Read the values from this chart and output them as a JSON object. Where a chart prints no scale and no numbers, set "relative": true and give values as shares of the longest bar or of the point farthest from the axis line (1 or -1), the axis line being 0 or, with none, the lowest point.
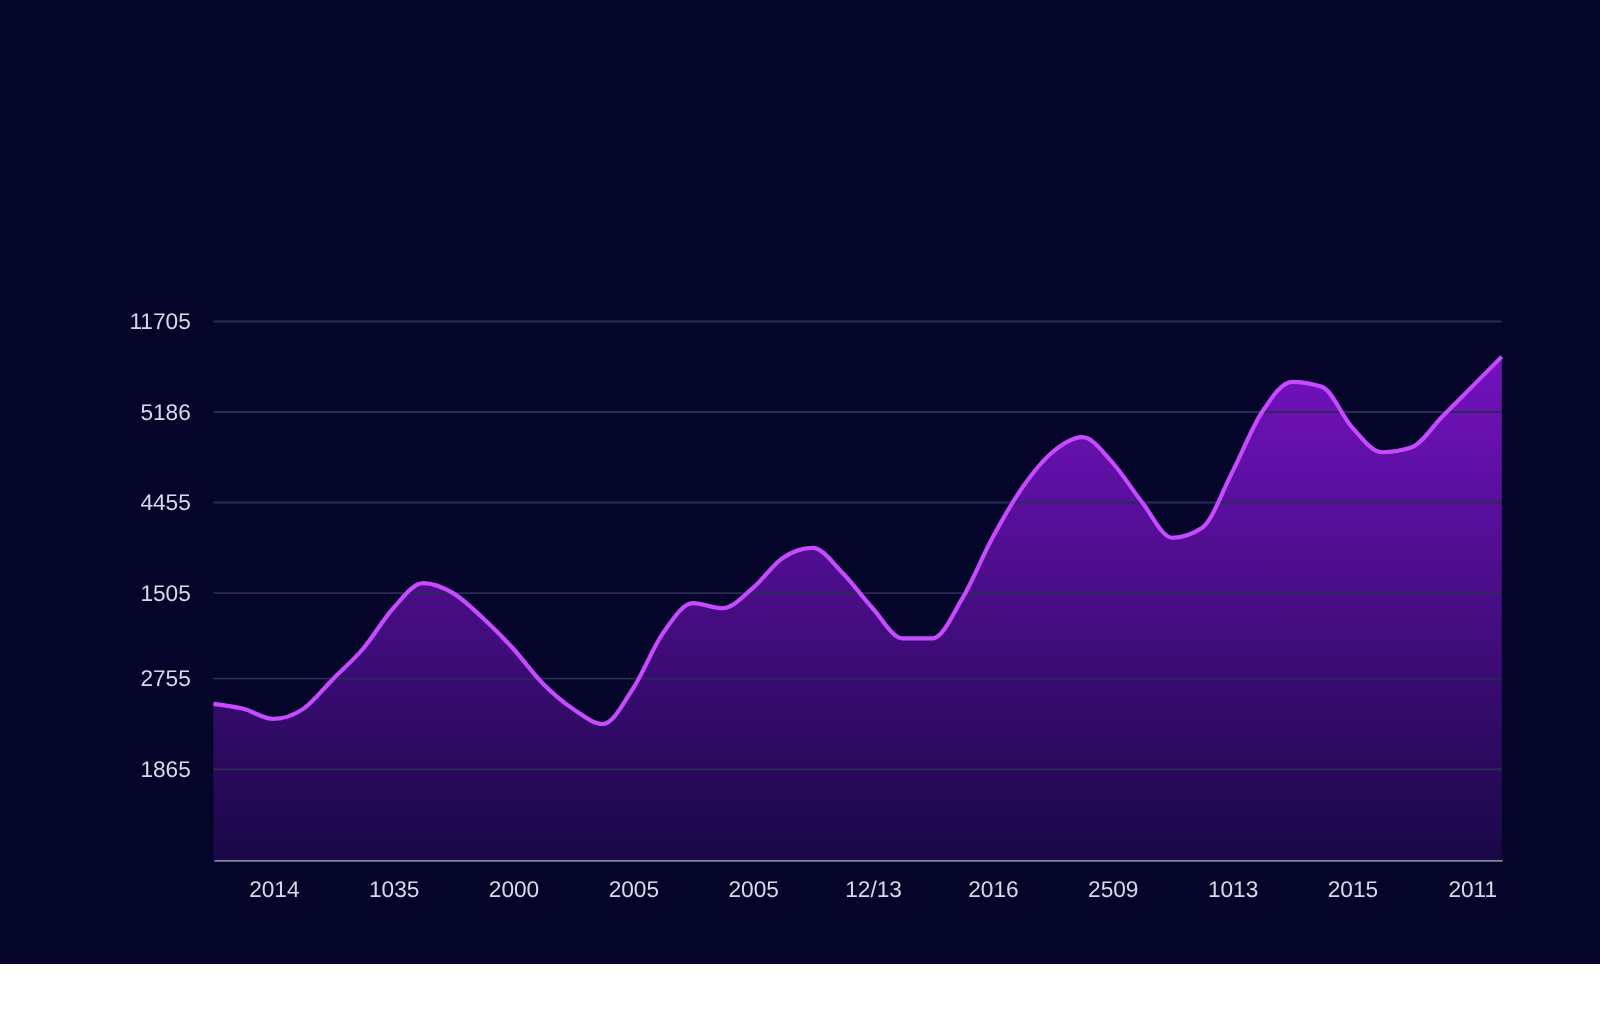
{
  "chart_data": {
    "type": "area",
    "relative": true,
    "categories": [
      null,
      null,
      "2014",
      null,
      null,
      null,
      "1035",
      null,
      null,
      null,
      "2000",
      null,
      null,
      null,
      "2005",
      null,
      null,
      null,
      "2005",
      null,
      null,
      null,
      "12/13",
      null,
      null,
      null,
      "2016",
      null,
      null,
      null,
      "2509",
      null,
      null,
      null,
      "1013",
      null,
      null,
      null,
      "2015",
      null,
      null,
      null,
      "2011",
      null
    ],
    "series": [
      {
        "color": "#c64bff",
        "values": [
          0.31,
          0.3,
          0.28,
          0.3,
          0.36,
          0.42,
          0.5,
          0.55,
          0.53,
          0.48,
          0.42,
          0.35,
          0.3,
          0.27,
          0.34,
          0.45,
          0.51,
          0.5,
          0.54,
          0.6,
          0.62,
          0.57,
          0.5,
          0.44,
          0.44,
          0.52,
          0.64,
          0.74,
          0.81,
          0.84,
          0.79,
          0.71,
          0.64,
          0.66,
          0.77,
          0.89,
          0.95,
          0.94,
          0.86,
          0.81,
          0.82,
          0.88,
          0.94,
          1.0
        ]
      }
    ],
    "ref_lines": [
      {
        "axis": "y",
        "value": 0.18
      },
      {
        "axis": "y",
        "value": 0.36
      },
      {
        "axis": "y",
        "value": 0.53
      },
      {
        "axis": "y",
        "value": 0.71
      },
      {
        "axis": "y",
        "value": 0.89
      },
      {
        "axis": "y",
        "value": 1.07
      }
    ],
    "annotations": [
      "1865",
      "2755",
      "1505",
      "4455",
      "5186",
      "11705"
    ],
    "marker": "none",
    "line_style": "solid"
  }
}
